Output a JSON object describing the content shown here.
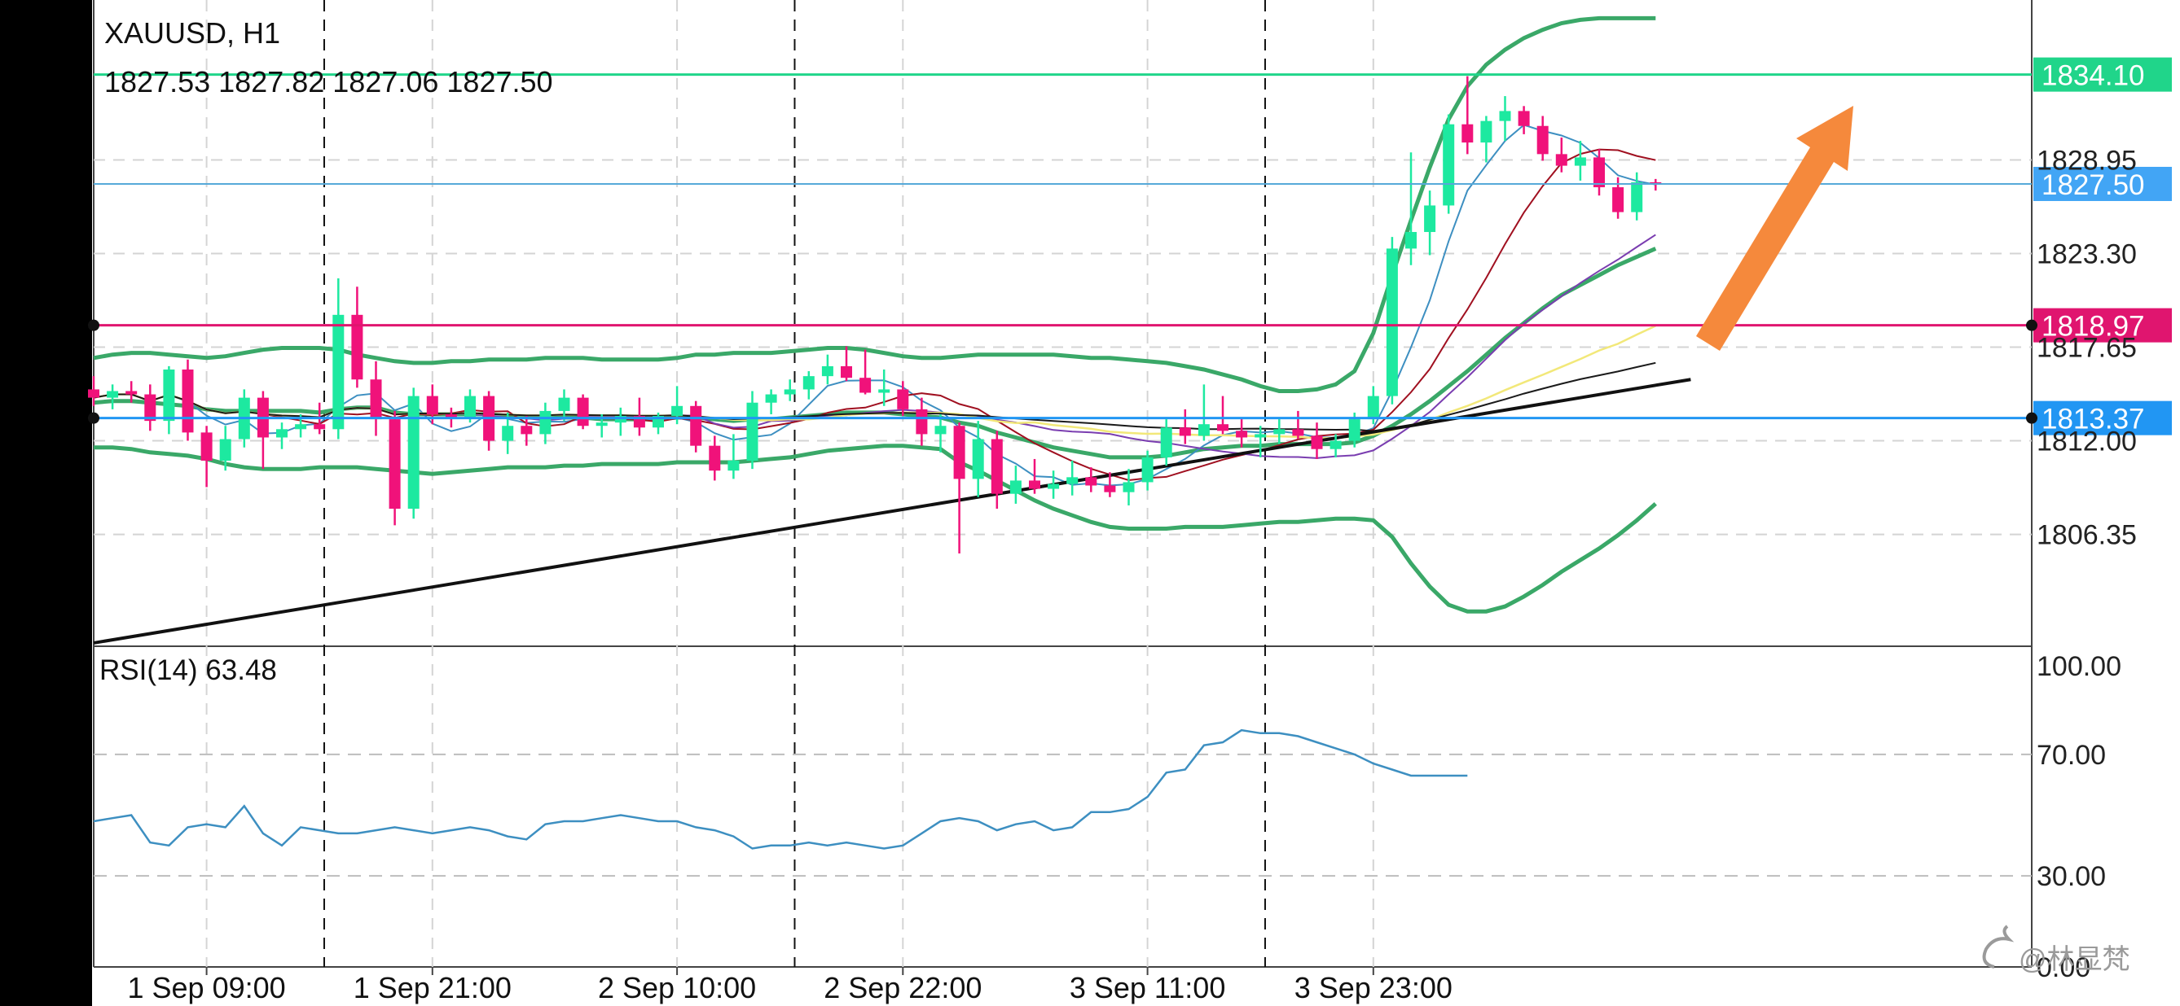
{
  "header": {
    "symbol": "XAUUSD, H1",
    "ohlc": "1827.53 1827.82 1827.06 1827.50"
  },
  "rsi_header": "RSI(14) 63.48",
  "watermark": "@林显梵",
  "colors": {
    "bull": "#1de9a0",
    "bear": "#f0127a",
    "bollinger": "#3aa868",
    "rsi_line": "#3d8fc1",
    "trendline": "#111111",
    "arrow": "#f5893c",
    "level_green": "#20d58a",
    "level_blue": "#2196f3",
    "level_magenta": "#e0156f"
  },
  "chart_data": [
    {
      "type": "candlestick",
      "title": "XAUUSD, H1",
      "x_tick_labels": [
        "1 Sep 09:00",
        "1 Sep 21:00",
        "2 Sep 10:00",
        "2 Sep 22:00",
        "3 Sep 11:00",
        "3 Sep 23:00"
      ],
      "y_tick_labels": [
        "1828.95",
        "1823.30",
        "1817.65",
        "1812.00",
        "1806.35"
      ],
      "ylim": [
        1799.6,
        1838.6
      ],
      "grid": true,
      "candles": [
        [
          1815.1,
          1815.9,
          1814.1,
          1814.6
        ],
        [
          1814.6,
          1815.4,
          1813.9,
          1815.0
        ],
        [
          1815.0,
          1815.6,
          1814.3,
          1814.8
        ],
        [
          1814.8,
          1815.4,
          1812.6,
          1813.2
        ],
        [
          1813.2,
          1816.5,
          1812.4,
          1816.3
        ],
        [
          1816.3,
          1816.9,
          1812.0,
          1812.5
        ],
        [
          1812.5,
          1812.9,
          1809.2,
          1810.8
        ],
        [
          1810.8,
          1812.9,
          1810.2,
          1812.1
        ],
        [
          1812.1,
          1815.1,
          1811.6,
          1814.6
        ],
        [
          1814.6,
          1815.0,
          1810.3,
          1812.2
        ],
        [
          1812.2,
          1813.1,
          1811.5,
          1812.7
        ],
        [
          1812.7,
          1813.6,
          1812.2,
          1813.0
        ],
        [
          1813.0,
          1814.3,
          1812.4,
          1812.7
        ],
        [
          1812.7,
          1821.8,
          1812.1,
          1819.6
        ],
        [
          1819.6,
          1821.3,
          1815.2,
          1815.7
        ],
        [
          1815.7,
          1816.8,
          1812.3,
          1813.3
        ],
        [
          1813.3,
          1813.8,
          1806.9,
          1807.9
        ],
        [
          1807.9,
          1815.2,
          1807.3,
          1814.7
        ],
        [
          1814.7,
          1815.4,
          1813.0,
          1813.6
        ],
        [
          1813.6,
          1814.0,
          1812.8,
          1813.4
        ],
        [
          1813.4,
          1815.1,
          1813.1,
          1814.7
        ],
        [
          1814.7,
          1815.0,
          1811.4,
          1812.0
        ],
        [
          1812.0,
          1813.7,
          1811.2,
          1812.9
        ],
        [
          1812.9,
          1813.5,
          1811.7,
          1812.4
        ],
        [
          1812.4,
          1814.3,
          1811.8,
          1813.8
        ],
        [
          1813.8,
          1815.1,
          1813.2,
          1814.6
        ],
        [
          1814.6,
          1814.8,
          1812.7,
          1812.9
        ],
        [
          1812.9,
          1813.6,
          1812.2,
          1813.1
        ],
        [
          1813.1,
          1814.0,
          1812.3,
          1813.5
        ],
        [
          1813.5,
          1814.6,
          1812.3,
          1812.8
        ],
        [
          1812.8,
          1813.7,
          1812.4,
          1813.5
        ],
        [
          1813.5,
          1815.3,
          1813.0,
          1814.1
        ],
        [
          1814.1,
          1814.4,
          1811.3,
          1811.7
        ],
        [
          1811.7,
          1812.3,
          1809.6,
          1810.2
        ],
        [
          1810.2,
          1812.4,
          1809.7,
          1810.8
        ],
        [
          1810.8,
          1815.0,
          1810.3,
          1814.3
        ],
        [
          1814.3,
          1815.1,
          1813.6,
          1814.8
        ],
        [
          1814.8,
          1815.7,
          1814.4,
          1815.1
        ],
        [
          1815.1,
          1816.2,
          1814.5,
          1815.9
        ],
        [
          1815.9,
          1817.2,
          1815.4,
          1816.5
        ],
        [
          1816.5,
          1817.7,
          1815.6,
          1815.8
        ],
        [
          1815.8,
          1817.5,
          1814.8,
          1814.9
        ],
        [
          1814.9,
          1816.3,
          1814.1,
          1815.1
        ],
        [
          1815.1,
          1815.6,
          1813.5,
          1813.9
        ],
        [
          1813.9,
          1814.6,
          1811.7,
          1812.4
        ],
        [
          1812.4,
          1813.6,
          1811.3,
          1812.9
        ],
        [
          1812.9,
          1813.1,
          1805.2,
          1809.7
        ],
        [
          1809.7,
          1813.2,
          1808.6,
          1812.1
        ],
        [
          1812.1,
          1812.6,
          1807.9,
          1808.8
        ],
        [
          1808.8,
          1810.5,
          1808.2,
          1809.6
        ],
        [
          1809.6,
          1810.9,
          1808.8,
          1809.1
        ],
        [
          1809.1,
          1810.2,
          1808.5,
          1809.4
        ],
        [
          1809.4,
          1810.8,
          1808.7,
          1809.8
        ],
        [
          1809.8,
          1810.4,
          1808.9,
          1809.3
        ],
        [
          1809.3,
          1810.1,
          1808.6,
          1808.9
        ],
        [
          1808.9,
          1810.3,
          1808.1,
          1809.5
        ],
        [
          1809.5,
          1811.4,
          1809.0,
          1811.0
        ],
        [
          1811.0,
          1813.3,
          1810.5,
          1812.8
        ],
        [
          1812.8,
          1813.9,
          1811.8,
          1812.3
        ],
        [
          1812.3,
          1815.4,
          1812.0,
          1813.0
        ],
        [
          1813.0,
          1814.7,
          1812.4,
          1812.6
        ],
        [
          1812.6,
          1813.3,
          1811.6,
          1812.2
        ],
        [
          1812.2,
          1812.9,
          1811.0,
          1812.4
        ],
        [
          1812.4,
          1813.3,
          1811.8,
          1812.7
        ],
        [
          1812.7,
          1813.8,
          1812.1,
          1812.3
        ],
        [
          1812.3,
          1813.1,
          1810.9,
          1811.5
        ],
        [
          1811.5,
          1812.4,
          1811.0,
          1812.0
        ],
        [
          1812.0,
          1813.7,
          1811.6,
          1813.3
        ],
        [
          1813.3,
          1815.3,
          1813.0,
          1814.7
        ],
        [
          1814.7,
          1824.3,
          1814.2,
          1823.6
        ],
        [
          1823.6,
          1829.4,
          1822.6,
          1824.6
        ],
        [
          1824.6,
          1827.1,
          1823.2,
          1826.2
        ],
        [
          1826.2,
          1831.7,
          1825.7,
          1831.1
        ],
        [
          1831.1,
          1834.0,
          1829.3,
          1830.0
        ],
        [
          1830.0,
          1831.6,
          1828.8,
          1831.3
        ],
        [
          1831.3,
          1832.8,
          1830.1,
          1831.9
        ],
        [
          1831.9,
          1832.2,
          1830.5,
          1831.0
        ],
        [
          1831.0,
          1831.6,
          1828.9,
          1829.3
        ],
        [
          1829.3,
          1830.3,
          1828.2,
          1828.6
        ],
        [
          1828.6,
          1830.1,
          1827.7,
          1829.1
        ],
        [
          1829.1,
          1829.6,
          1826.8,
          1827.3
        ],
        [
          1827.3,
          1827.9,
          1825.4,
          1825.8
        ],
        [
          1825.8,
          1828.2,
          1825.3,
          1827.6
        ],
        [
          1827.6,
          1827.8,
          1827.1,
          1827.5
        ]
      ],
      "bollinger_upper": [
        1817.0,
        1817.2,
        1817.3,
        1817.3,
        1817.2,
        1817.1,
        1817.0,
        1817.1,
        1817.3,
        1817.5,
        1817.6,
        1817.6,
        1817.6,
        1817.5,
        1817.2,
        1817.0,
        1816.8,
        1816.7,
        1816.7,
        1816.8,
        1816.8,
        1816.9,
        1816.9,
        1816.9,
        1817.0,
        1817.0,
        1817.0,
        1816.9,
        1816.9,
        1816.9,
        1816.9,
        1817.0,
        1817.2,
        1817.2,
        1817.3,
        1817.3,
        1817.3,
        1817.4,
        1817.5,
        1817.6,
        1817.6,
        1817.5,
        1817.3,
        1817.1,
        1817.0,
        1817.0,
        1817.1,
        1817.2,
        1817.2,
        1817.2,
        1817.2,
        1817.2,
        1817.1,
        1817.0,
        1817.0,
        1816.9,
        1816.8,
        1816.7,
        1816.5,
        1816.3,
        1816.0,
        1815.7,
        1815.3,
        1815.0,
        1815.0,
        1815.1,
        1815.4,
        1816.2,
        1818.5,
        1822.0,
        1825.3,
        1828.5,
        1831.4,
        1833.4,
        1834.7,
        1835.6,
        1836.3,
        1836.8,
        1837.2,
        1837.4,
        1837.5,
        1837.5,
        1837.5,
        1837.5
      ],
      "bollinger_middle": [
        1814.3,
        1814.4,
        1814.4,
        1814.3,
        1814.2,
        1814.1,
        1813.9,
        1813.8,
        1813.8,
        1813.8,
        1813.8,
        1813.8,
        1813.7,
        1813.9,
        1814.0,
        1814.0,
        1813.7,
        1813.6,
        1813.6,
        1813.6,
        1813.6,
        1813.6,
        1813.5,
        1813.4,
        1813.4,
        1813.4,
        1813.4,
        1813.3,
        1813.3,
        1813.3,
        1813.3,
        1813.4,
        1813.4,
        1813.3,
        1813.2,
        1813.3,
        1813.3,
        1813.4,
        1813.5,
        1813.6,
        1813.7,
        1813.7,
        1813.7,
        1813.6,
        1813.5,
        1813.4,
        1813.1,
        1812.9,
        1812.5,
        1812.2,
        1811.9,
        1811.6,
        1811.4,
        1811.2,
        1811.0,
        1811.0,
        1811.0,
        1811.1,
        1811.3,
        1811.5,
        1811.6,
        1811.7,
        1811.7,
        1811.8,
        1811.8,
        1811.8,
        1811.8,
        1811.9,
        1812.3,
        1812.9,
        1813.6,
        1814.4,
        1815.3,
        1816.2,
        1817.2,
        1818.2,
        1819.1,
        1820.0,
        1820.8,
        1821.4,
        1822.0,
        1822.6,
        1823.1,
        1823.6
      ],
      "bollinger_lower": [
        1811.6,
        1811.6,
        1811.5,
        1811.3,
        1811.2,
        1811.1,
        1810.9,
        1810.6,
        1810.4,
        1810.3,
        1810.3,
        1810.3,
        1810.4,
        1810.4,
        1810.4,
        1810.3,
        1810.2,
        1810.1,
        1810.0,
        1810.1,
        1810.2,
        1810.3,
        1810.4,
        1810.4,
        1810.4,
        1810.5,
        1810.5,
        1810.6,
        1810.6,
        1810.6,
        1810.6,
        1810.7,
        1810.7,
        1810.7,
        1810.7,
        1810.8,
        1810.9,
        1811.0,
        1811.2,
        1811.4,
        1811.5,
        1811.6,
        1811.7,
        1811.7,
        1811.6,
        1811.5,
        1810.7,
        1810.2,
        1809.6,
        1809.0,
        1808.4,
        1807.9,
        1807.5,
        1807.1,
        1806.8,
        1806.7,
        1806.7,
        1806.7,
        1806.8,
        1806.8,
        1806.8,
        1806.9,
        1807.0,
        1807.1,
        1807.1,
        1807.2,
        1807.3,
        1807.3,
        1807.2,
        1806.2,
        1804.6,
        1803.2,
        1802.1,
        1801.7,
        1801.7,
        1802.0,
        1802.6,
        1803.3,
        1804.1,
        1804.8,
        1805.5,
        1806.3,
        1807.2,
        1808.2
      ],
      "level_lines": [
        1834.1,
        1827.5,
        1818.97,
        1813.37
      ],
      "price_labels": [
        "1834.10",
        "1827.50",
        "1818.97",
        "1813.37"
      ],
      "trendline": [
        [
          0,
          1799.8
        ],
        [
          84,
          1815.7
        ]
      ],
      "annotations": [
        "up-arrow"
      ]
    },
    {
      "type": "line",
      "title": "RSI(14) 63.48",
      "y_tick_labels": [
        "100.00",
        "70.00",
        "30.00",
        "0.00"
      ],
      "ylim": [
        0,
        100
      ],
      "dashed_levels": [
        70,
        30
      ],
      "series": [
        {
          "values": [
            48,
            49,
            50,
            41,
            40,
            46,
            47,
            46,
            53,
            44,
            40,
            46,
            45,
            44,
            44,
            45,
            46,
            45,
            44,
            45,
            46,
            45,
            43,
            42,
            47,
            48,
            48,
            49,
            50,
            49,
            48,
            48,
            46,
            45,
            43,
            39,
            40,
            40,
            41,
            40,
            41,
            40,
            39,
            40,
            44,
            48,
            49,
            48,
            45,
            47,
            48,
            45,
            46,
            51,
            51,
            52,
            56,
            64,
            65,
            73,
            74,
            78,
            77,
            77,
            76,
            74,
            72,
            70,
            67,
            65,
            63,
            63,
            63,
            63
          ]
        }
      ]
    }
  ]
}
